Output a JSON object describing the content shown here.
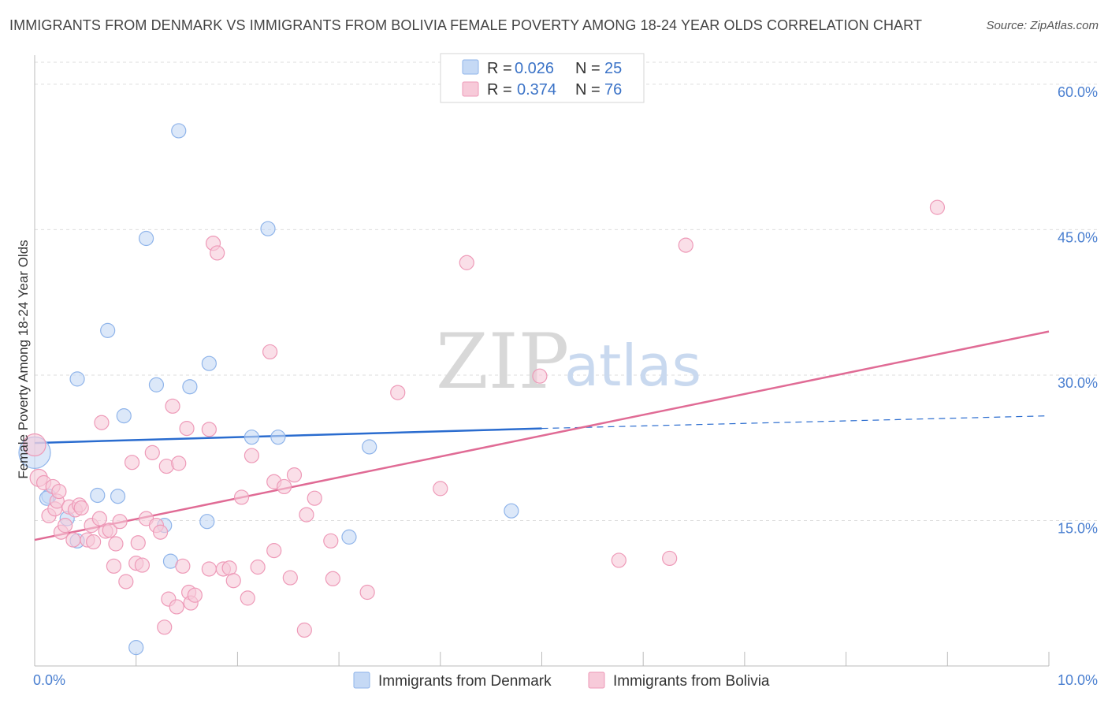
{
  "title": "IMMIGRANTS FROM DENMARK VS IMMIGRANTS FROM BOLIVIA FEMALE POVERTY AMONG 18-24 YEAR OLDS CORRELATION CHART",
  "source": "Source: ZipAtlas.com",
  "watermark": {
    "zip": "ZIP",
    "atlas": "atlas"
  },
  "legend": {
    "r_label": "R =",
    "n_label": "N =",
    "rows": [
      {
        "r": "0.026",
        "n": "25"
      },
      {
        "r": "0.374",
        "n": "76"
      }
    ]
  },
  "chart_data": {
    "type": "scatter",
    "title": "IMMIGRANTS FROM DENMARK VS IMMIGRANTS FROM BOLIVIA FEMALE POVERTY AMONG 18-24 YEAR OLDS CORRELATION CHART",
    "xlabel": "",
    "ylabel": "Female Poverty Among 18-24 Year Olds",
    "xlim": [
      0,
      10
    ],
    "ylim": [
      0,
      63
    ],
    "x_tick_labels": [
      "0.0%",
      "10.0%"
    ],
    "y_ticks": [
      15,
      30,
      45,
      60
    ],
    "y_tick_labels": [
      "15.0%",
      "30.0%",
      "45.0%",
      "60.0%"
    ],
    "grid": true,
    "series": [
      {
        "name": "Immigrants from Denmark",
        "color": "#8fb4ea",
        "fill": "#c5d9f5",
        "trend": {
          "x0": 0,
          "y0": 23.0,
          "x1": 5,
          "y1": 24.5,
          "dashed_to_x": 10,
          "dashed_to_y": 25.8,
          "color": "#2a6ccf"
        },
        "points": [
          [
            0.0,
            22.0,
            20
          ],
          [
            0.14,
            17.5,
            9
          ],
          [
            0.32,
            15.2,
            9
          ],
          [
            0.42,
            12.9,
            9
          ],
          [
            0.62,
            17.6,
            9
          ],
          [
            0.82,
            17.5,
            9
          ],
          [
            0.88,
            25.8,
            9
          ],
          [
            1.0,
            1.9,
            9
          ],
          [
            1.1,
            44.1,
            9
          ],
          [
            1.2,
            29.0,
            9
          ],
          [
            1.28,
            14.5,
            9
          ],
          [
            1.34,
            10.8,
            9
          ],
          [
            1.42,
            55.2,
            9
          ],
          [
            1.53,
            28.8,
            9
          ],
          [
            1.7,
            14.9,
            9
          ],
          [
            1.72,
            31.2,
            9
          ],
          [
            2.14,
            23.6,
            9
          ],
          [
            2.3,
            45.1,
            9
          ],
          [
            2.4,
            23.6,
            9
          ],
          [
            3.1,
            13.3,
            9
          ],
          [
            3.3,
            22.6,
            9
          ],
          [
            4.7,
            16.0,
            9
          ],
          [
            0.72,
            34.6,
            9
          ],
          [
            0.42,
            29.6,
            9
          ],
          [
            0.12,
            17.3,
            9
          ]
        ]
      },
      {
        "name": "Immigrants from Bolivia",
        "color": "#ee9ab8",
        "fill": "#f7cad9",
        "trend": {
          "x0": 0,
          "y0": 13.0,
          "x1": 10,
          "y1": 34.5,
          "color": "#e06b95"
        },
        "points": [
          [
            0.0,
            22.8,
            14
          ],
          [
            0.04,
            19.4,
            11
          ],
          [
            0.09,
            18.9,
            9
          ],
          [
            0.14,
            15.5,
            9
          ],
          [
            0.18,
            18.5,
            9
          ],
          [
            0.2,
            16.2,
            9
          ],
          [
            0.22,
            17.0,
            9
          ],
          [
            0.24,
            18.0,
            9
          ],
          [
            0.26,
            13.8,
            9
          ],
          [
            0.3,
            14.5,
            9
          ],
          [
            0.34,
            16.4,
            9
          ],
          [
            0.38,
            13.0,
            9
          ],
          [
            0.4,
            16.1,
            9
          ],
          [
            0.44,
            16.6,
            9
          ],
          [
            0.46,
            16.3,
            9
          ],
          [
            0.52,
            13.0,
            9
          ],
          [
            0.56,
            14.5,
            9
          ],
          [
            0.58,
            12.8,
            9
          ],
          [
            0.64,
            15.2,
            9
          ],
          [
            0.66,
            25.1,
            9
          ],
          [
            0.7,
            13.9,
            9
          ],
          [
            0.74,
            14.0,
            9
          ],
          [
            0.78,
            10.3,
            9
          ],
          [
            0.8,
            12.6,
            9
          ],
          [
            0.84,
            14.9,
            9
          ],
          [
            0.9,
            8.7,
            9
          ],
          [
            0.96,
            21.0,
            9
          ],
          [
            1.0,
            10.6,
            9
          ],
          [
            1.02,
            12.7,
            9
          ],
          [
            1.06,
            10.4,
            9
          ],
          [
            1.1,
            15.2,
            9
          ],
          [
            1.16,
            22.0,
            9
          ],
          [
            1.2,
            14.5,
            9
          ],
          [
            1.24,
            13.8,
            9
          ],
          [
            1.28,
            4.0,
            9
          ],
          [
            1.3,
            20.6,
            9
          ],
          [
            1.32,
            6.9,
            9
          ],
          [
            1.36,
            26.8,
            9
          ],
          [
            1.4,
            6.1,
            9
          ],
          [
            1.42,
            20.9,
            9
          ],
          [
            1.46,
            10.3,
            9
          ],
          [
            1.5,
            24.5,
            9
          ],
          [
            1.52,
            7.6,
            9
          ],
          [
            1.54,
            6.5,
            9
          ],
          [
            1.58,
            7.3,
            9
          ],
          [
            1.72,
            24.4,
            9
          ],
          [
            1.72,
            10.0,
            9
          ],
          [
            1.76,
            43.6,
            9
          ],
          [
            1.8,
            42.6,
            9
          ],
          [
            1.86,
            10.0,
            9
          ],
          [
            1.92,
            10.1,
            9
          ],
          [
            1.96,
            8.8,
            9
          ],
          [
            2.04,
            17.4,
            9
          ],
          [
            2.1,
            7.0,
            9
          ],
          [
            2.14,
            21.7,
            9
          ],
          [
            2.2,
            10.2,
            9
          ],
          [
            2.32,
            32.4,
            9
          ],
          [
            2.36,
            19.0,
            9
          ],
          [
            2.36,
            11.9,
            9
          ],
          [
            2.46,
            18.5,
            9
          ],
          [
            2.52,
            9.1,
            9
          ],
          [
            2.56,
            19.7,
            9
          ],
          [
            2.66,
            3.7,
            9
          ],
          [
            2.68,
            15.6,
            9
          ],
          [
            2.76,
            17.3,
            9
          ],
          [
            2.92,
            12.9,
            9
          ],
          [
            2.94,
            9.0,
            9
          ],
          [
            3.28,
            7.6,
            9
          ],
          [
            3.58,
            28.2,
            9
          ],
          [
            4.0,
            18.3,
            9
          ],
          [
            4.26,
            41.6,
            9
          ],
          [
            4.98,
            29.9,
            9
          ],
          [
            5.76,
            10.9,
            9
          ],
          [
            6.26,
            11.1,
            9
          ],
          [
            6.42,
            43.4,
            9
          ],
          [
            8.9,
            47.3,
            9
          ]
        ]
      }
    ]
  }
}
